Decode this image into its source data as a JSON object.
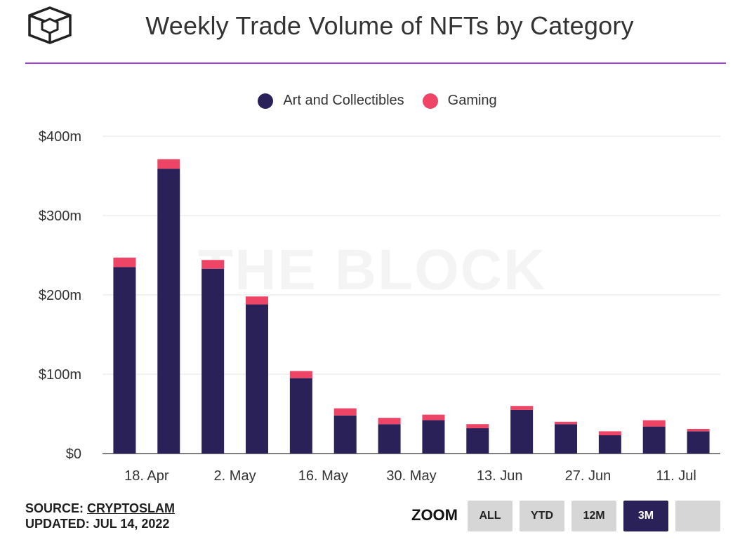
{
  "header": {
    "title": "Weekly Trade Volume of NFTs by Category"
  },
  "watermark": "THE BLOCK",
  "colors": {
    "art": "#2a2159",
    "gaming": "#ee4466",
    "accent_rule": "#a23ee6",
    "grid": "#e6e6e6"
  },
  "chart_data": {
    "type": "bar",
    "stacked": true,
    "title": "Weekly Trade Volume of NFTs by Category",
    "xlabel": "",
    "ylabel": "",
    "ylim": [
      0,
      400
    ],
    "y_unit": "m",
    "y_ticks": [
      "$0",
      "$100m",
      "$200m",
      "$300m",
      "$400m"
    ],
    "x_tick_labels": [
      "18. Apr",
      "2. May",
      "16. May",
      "30. May",
      "13. Jun",
      "27. Jun",
      "11. Jul"
    ],
    "categories": [
      "2022-04-11",
      "2022-04-18",
      "2022-04-25",
      "2022-05-02",
      "2022-05-09",
      "2022-05-16",
      "2022-05-23",
      "2022-05-30",
      "2022-06-06",
      "2022-06-13",
      "2022-06-20",
      "2022-06-27",
      "2022-07-04",
      "2022-07-11"
    ],
    "series": [
      {
        "name": "Art and Collectibles",
        "values": [
          235,
          359,
          233,
          188,
          95,
          48,
          37,
          42,
          32,
          55,
          37,
          23,
          34,
          28
        ]
      },
      {
        "name": "Gaming",
        "values": [
          12,
          12,
          11,
          10,
          9,
          9,
          8,
          7,
          5,
          5,
          3,
          5,
          8,
          3
        ]
      }
    ],
    "grid": true,
    "legend_position": "top-center"
  },
  "footer": {
    "source_label": "SOURCE:",
    "source_value": "CRYPTOSLAM",
    "updated_label": "UPDATED:",
    "updated_value": "JUL 14, 2022"
  },
  "zoom": {
    "label": "ZOOM",
    "buttons": [
      {
        "label": "ALL"
      },
      {
        "label": "YTD"
      },
      {
        "label": "12M"
      },
      {
        "label": "3M"
      },
      {
        "label": ""
      }
    ],
    "selected": "3M"
  }
}
